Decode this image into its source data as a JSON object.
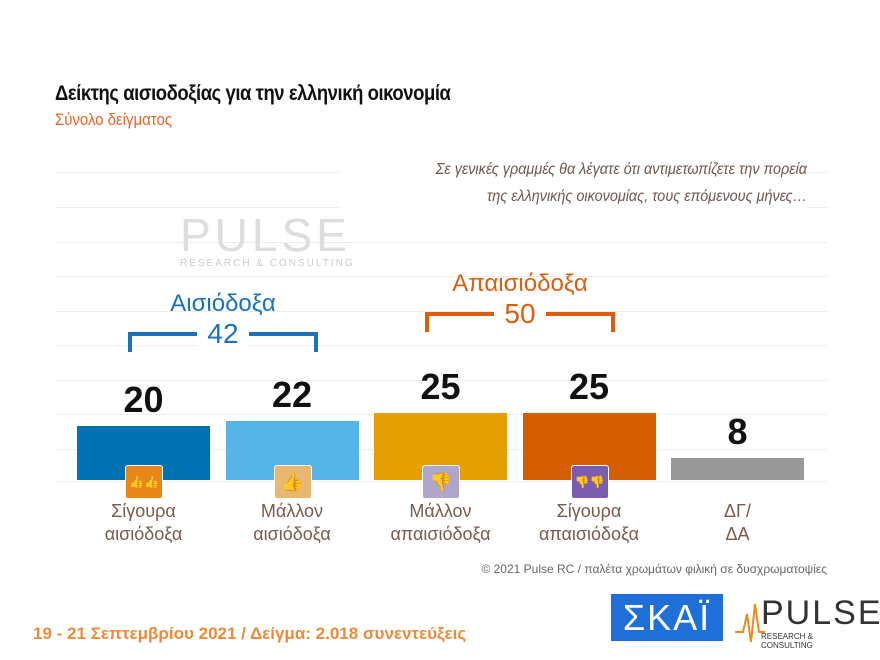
{
  "title": "Δείκτης αισιοδοξίας για την ελληνική οικονομία",
  "subtitle": "Σύνολο δείγματος",
  "question_line1": "Σε γενικές γραμμές θα λέγατε ότι αντιμετωπίζετε την πορεία",
  "question_line2": "της ελληνικής οικονομίας, τους επόμενους μήνες…",
  "groups": {
    "optimistic": {
      "label": "Αισιόδοξα",
      "total": "42",
      "color": "#1a73b8"
    },
    "pessimistic": {
      "label": "Απαισιόδοξα",
      "total": "50",
      "color": "#d95f0e"
    }
  },
  "chart_data": {
    "type": "bar",
    "categories": [
      "Σίγουρα αισιόδοξα",
      "Μάλλον αισιόδοξα",
      "Μάλλον απαισιόδοξα",
      "Σίγουρα απαισιόδοξα",
      "ΔΓ/ ΔΑ"
    ],
    "category_lines": [
      [
        "Σίγουρα",
        "αισιόδοξα"
      ],
      [
        "Μάλλον",
        "αισιόδοξα"
      ],
      [
        "Μάλλον",
        "απαισιόδοξα"
      ],
      [
        "Σίγουρα",
        "απαισιόδοξα"
      ],
      [
        "ΔΓ/",
        "ΔΑ"
      ]
    ],
    "values": [
      20,
      22,
      25,
      25,
      8
    ],
    "labels": [
      "20",
      "22",
      "25",
      "25",
      "8"
    ],
    "colors": [
      "#0072b2",
      "#56b4e9",
      "#e69f00",
      "#d55e00",
      "#999999"
    ],
    "icons": [
      "double-thumbs-up-icon",
      "thumbs-up-icon",
      "thumbs-down-icon",
      "double-thumbs-down-icon",
      ""
    ],
    "icon_colors": [
      "#e8861a",
      "#e8b870",
      "#b0a6cc",
      "#7a5cb0",
      ""
    ],
    "ylim": [
      0,
      100
    ]
  },
  "watermark": {
    "name": "PULSE",
    "tag": "RESEARCH & CONSULTING"
  },
  "footnote": "© 2021 Pulse RC  /  παλέτα χρωμάτων φιλική σε δυσχρωματοψίες",
  "dates": "19 - 21 Σεπτεμβρίου 2021  /  Δείγμα:  2.018 συνεντεύξεις",
  "logos": {
    "skai": "ΣΚΑΪ",
    "pulse": "PULSE",
    "pulse_tag": "RESEARCH & CONSULTING"
  }
}
